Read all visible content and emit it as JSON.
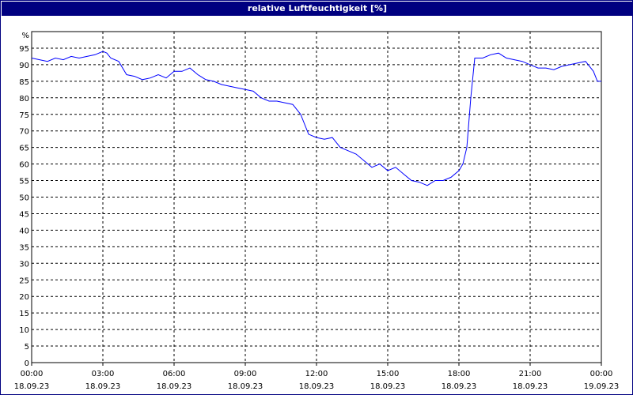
{
  "window": {
    "title": "relative Luftfeuchtigkeit [%]"
  },
  "colors": {
    "title_bar": "#000080",
    "line": "#0000ff",
    "grid": "#000000",
    "background": "#ffffff"
  },
  "chart_data": {
    "type": "line",
    "title": "relative Luftfeuchtigkeit [%]",
    "ylabel": "%",
    "xlabel": "",
    "ylim": [
      0,
      100
    ],
    "y_ticks": [
      0,
      5,
      10,
      15,
      20,
      25,
      30,
      35,
      40,
      45,
      50,
      55,
      60,
      65,
      70,
      75,
      80,
      85,
      90,
      95
    ],
    "x_range": [
      "18.09.23 00:00",
      "19.09.23 00:00"
    ],
    "x_tick_times": [
      "00:00",
      "03:00",
      "06:00",
      "09:00",
      "12:00",
      "15:00",
      "18:00",
      "21:00",
      "00:00"
    ],
    "x_tick_dates": [
      "18.09.23",
      "18.09.23",
      "18.09.23",
      "18.09.23",
      "18.09.23",
      "18.09.23",
      "18.09.23",
      "18.09.23",
      "19.09.23"
    ],
    "grid": true,
    "grid_style": "dashed",
    "legend": "none",
    "series": [
      {
        "x": [
          "00:00",
          "00:20",
          "00:40",
          "01:00",
          "01:20",
          "01:40",
          "02:00",
          "02:20",
          "02:40",
          "03:00",
          "03:10",
          "03:20",
          "03:40",
          "04:00",
          "04:20",
          "04:40",
          "05:00",
          "05:20",
          "05:40",
          "06:00",
          "06:20",
          "06:40",
          "07:00",
          "07:20",
          "07:40",
          "08:00",
          "08:20",
          "08:40",
          "09:00",
          "09:20",
          "09:40",
          "10:00",
          "10:20",
          "10:40",
          "11:00",
          "11:20",
          "11:40",
          "12:00",
          "12:20",
          "12:40",
          "13:00",
          "13:20",
          "13:40",
          "14:00",
          "14:20",
          "14:40",
          "15:00",
          "15:20",
          "15:40",
          "16:00",
          "16:20",
          "16:40",
          "17:00",
          "17:20",
          "17:40",
          "18:00",
          "18:10",
          "18:20",
          "18:30",
          "18:40",
          "19:00",
          "19:20",
          "19:40",
          "20:00",
          "20:20",
          "20:40",
          "21:00",
          "21:20",
          "21:40",
          "22:00",
          "22:20",
          "22:40",
          "23:00",
          "23:20",
          "23:40",
          "23:50",
          "24:00"
        ],
        "y": [
          92,
          91.5,
          91,
          92,
          91.5,
          92.5,
          92,
          92.5,
          93,
          94,
          93.5,
          92,
          91,
          87,
          86.5,
          85.5,
          86,
          87,
          86,
          88,
          88,
          89,
          87,
          85.5,
          85,
          84,
          83.5,
          83,
          82.5,
          82,
          80,
          79,
          79,
          78.5,
          78,
          75,
          69,
          68,
          67.5,
          68,
          65,
          64,
          63,
          61,
          59,
          60,
          58,
          59,
          57,
          55,
          54.5,
          53.5,
          55,
          55,
          56,
          58,
          60,
          65,
          80,
          92,
          92,
          93,
          93.5,
          92,
          91.5,
          91,
          90,
          89,
          89,
          88.5,
          89.5,
          90,
          90.5,
          91,
          88,
          85,
          85
        ]
      }
    ]
  }
}
